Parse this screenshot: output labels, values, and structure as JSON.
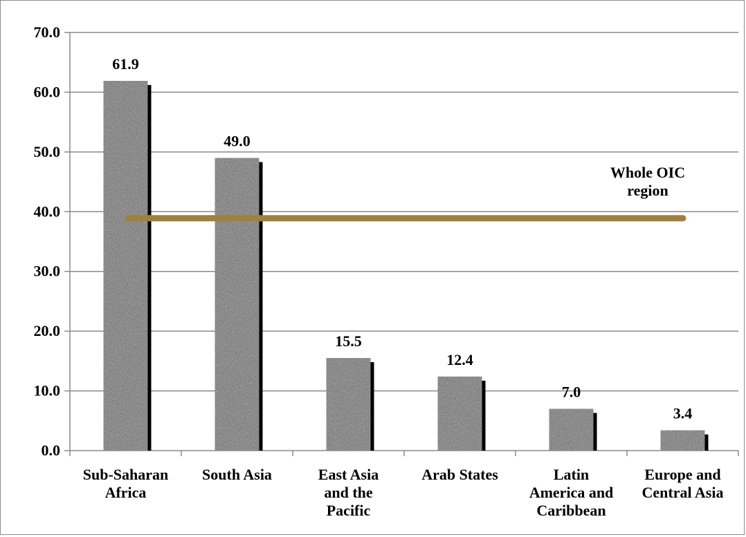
{
  "chart_data": {
    "type": "bar",
    "categories": [
      [
        "Sub-Saharan",
        "Africa"
      ],
      [
        "South Asia"
      ],
      [
        "East Asia",
        "and the",
        "Pacific"
      ],
      [
        "Arab States"
      ],
      [
        "Latin",
        "America and",
        "Caribbean"
      ],
      [
        "Europe and",
        "Central Asia"
      ]
    ],
    "values": [
      61.9,
      49.0,
      15.5,
      12.4,
      7.0,
      3.4
    ],
    "value_labels": [
      "61.9",
      "49.0",
      "15.5",
      "12.4",
      "7.0",
      "3.4"
    ],
    "ylim": [
      0,
      70
    ],
    "yticks": [
      "0.0",
      "10.0",
      "20.0",
      "30.0",
      "40.0",
      "50.0",
      "60.0",
      "70.0"
    ],
    "reference_line": {
      "label": [
        "Whole OIC",
        "region"
      ],
      "value": 38.9,
      "color": "#a08040"
    },
    "grid": true,
    "bar_fill": "#7a7a7a",
    "bar_shadow": "#000000",
    "legend": "none"
  }
}
